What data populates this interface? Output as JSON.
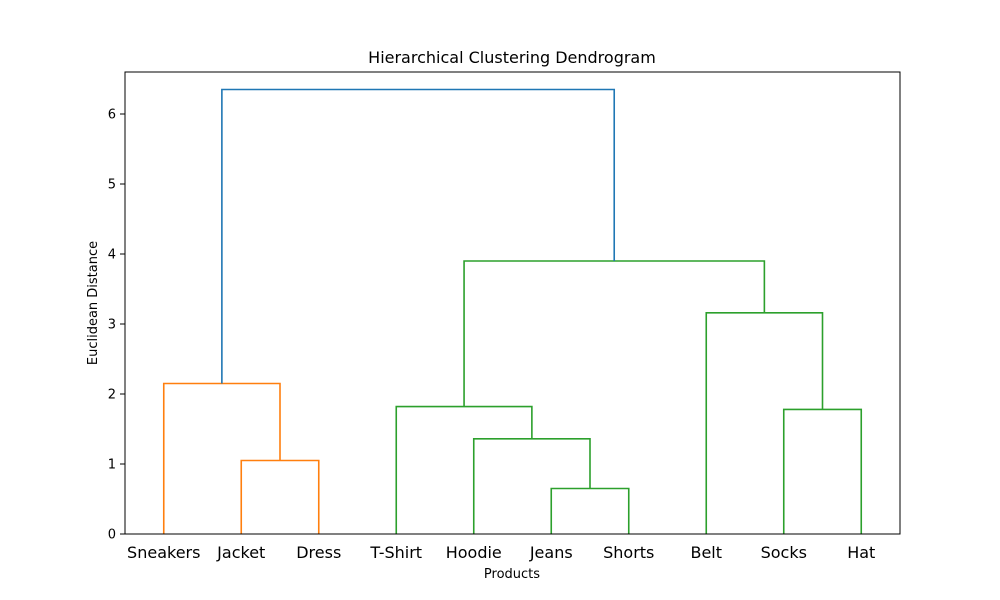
{
  "chart_data": {
    "type": "dendrogram",
    "title": "Hierarchical Clustering Dendrogram",
    "xlabel": "Products",
    "ylabel": "Euclidean Distance",
    "ylim": [
      0,
      6.6
    ],
    "yticks": [
      0,
      1,
      2,
      3,
      4,
      5,
      6
    ],
    "leaves": [
      "Sneakers",
      "Jacket",
      "Dress",
      "T-Shirt",
      "Hoodie",
      "Jeans",
      "Shorts",
      "Belt",
      "Socks",
      "Hat"
    ],
    "colors": {
      "cluster_1": "#ff7f0e",
      "cluster_2": "#2ca02c",
      "above_threshold": "#1f77b4"
    },
    "merges": [
      {
        "id": "m1",
        "left": "Jacket",
        "right": "Dress",
        "height": 1.05,
        "color": "cluster_1"
      },
      {
        "id": "m2",
        "left": "Sneakers",
        "right": "m1",
        "height": 2.15,
        "color": "cluster_1"
      },
      {
        "id": "m3",
        "left": "Jeans",
        "right": "Shorts",
        "height": 0.65,
        "color": "cluster_2"
      },
      {
        "id": "m4",
        "left": "Hoodie",
        "right": "m3",
        "height": 1.36,
        "color": "cluster_2"
      },
      {
        "id": "m5",
        "left": "T-Shirt",
        "right": "m4",
        "height": 1.82,
        "color": "cluster_2"
      },
      {
        "id": "m6",
        "left": "Socks",
        "right": "Hat",
        "height": 1.78,
        "color": "cluster_2"
      },
      {
        "id": "m7",
        "left": "Belt",
        "right": "m6",
        "height": 3.16,
        "color": "cluster_2"
      },
      {
        "id": "m8",
        "left": "m5",
        "right": "m7",
        "height": 3.9,
        "color": "cluster_2"
      },
      {
        "id": "m9",
        "left": "m2",
        "right": "m8",
        "height": 6.35,
        "color": "above_threshold"
      }
    ],
    "grid": false,
    "legend": "none"
  }
}
